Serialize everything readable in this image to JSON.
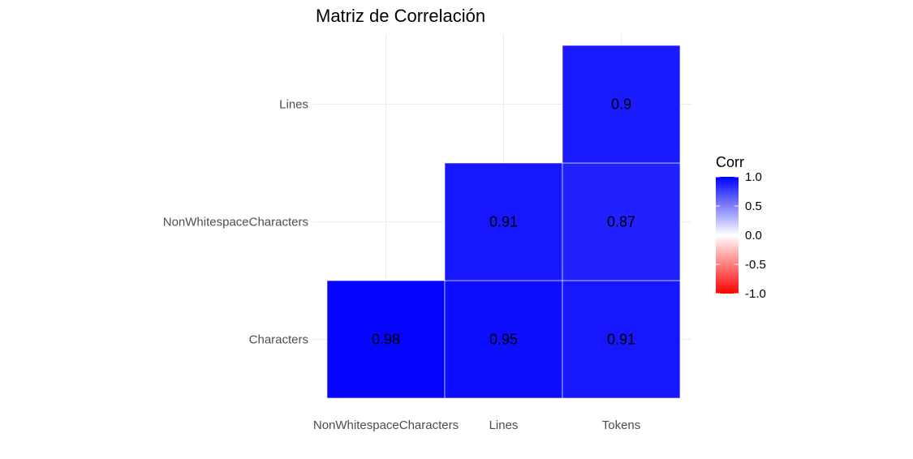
{
  "chart_data": {
    "type": "heatmap",
    "title": "Matriz de Correlación",
    "x_categories": [
      "NonWhitespaceCharacters",
      "Lines",
      "Tokens"
    ],
    "y_categories": [
      "Characters",
      "NonWhitespaceCharacters",
      "Lines"
    ],
    "cells": [
      {
        "x": "NonWhitespaceCharacters",
        "y": "Characters",
        "value": 0.98,
        "label": "0.98"
      },
      {
        "x": "Lines",
        "y": "Characters",
        "value": 0.95,
        "label": "0.95"
      },
      {
        "x": "Tokens",
        "y": "Characters",
        "value": 0.91,
        "label": "0.91"
      },
      {
        "x": "Lines",
        "y": "NonWhitespaceCharacters",
        "value": 0.91,
        "label": "0.91"
      },
      {
        "x": "Tokens",
        "y": "NonWhitespaceCharacters",
        "value": 0.87,
        "label": "0.87"
      },
      {
        "x": "Tokens",
        "y": "Lines",
        "value": 0.9,
        "label": "0.9"
      }
    ],
    "legend": {
      "title": "Corr",
      "position": "right",
      "limits": [
        -1.0,
        1.0
      ],
      "ticks": [
        1.0,
        0.5,
        0.0,
        -0.5,
        -1.0
      ],
      "tick_labels": [
        "1.0",
        "0.5",
        "0.0",
        "-0.5",
        "-1.0"
      ],
      "colors": {
        "low": "#ff0000",
        "mid": "#ffffff",
        "high": "#0000ff"
      }
    },
    "grid": true
  }
}
